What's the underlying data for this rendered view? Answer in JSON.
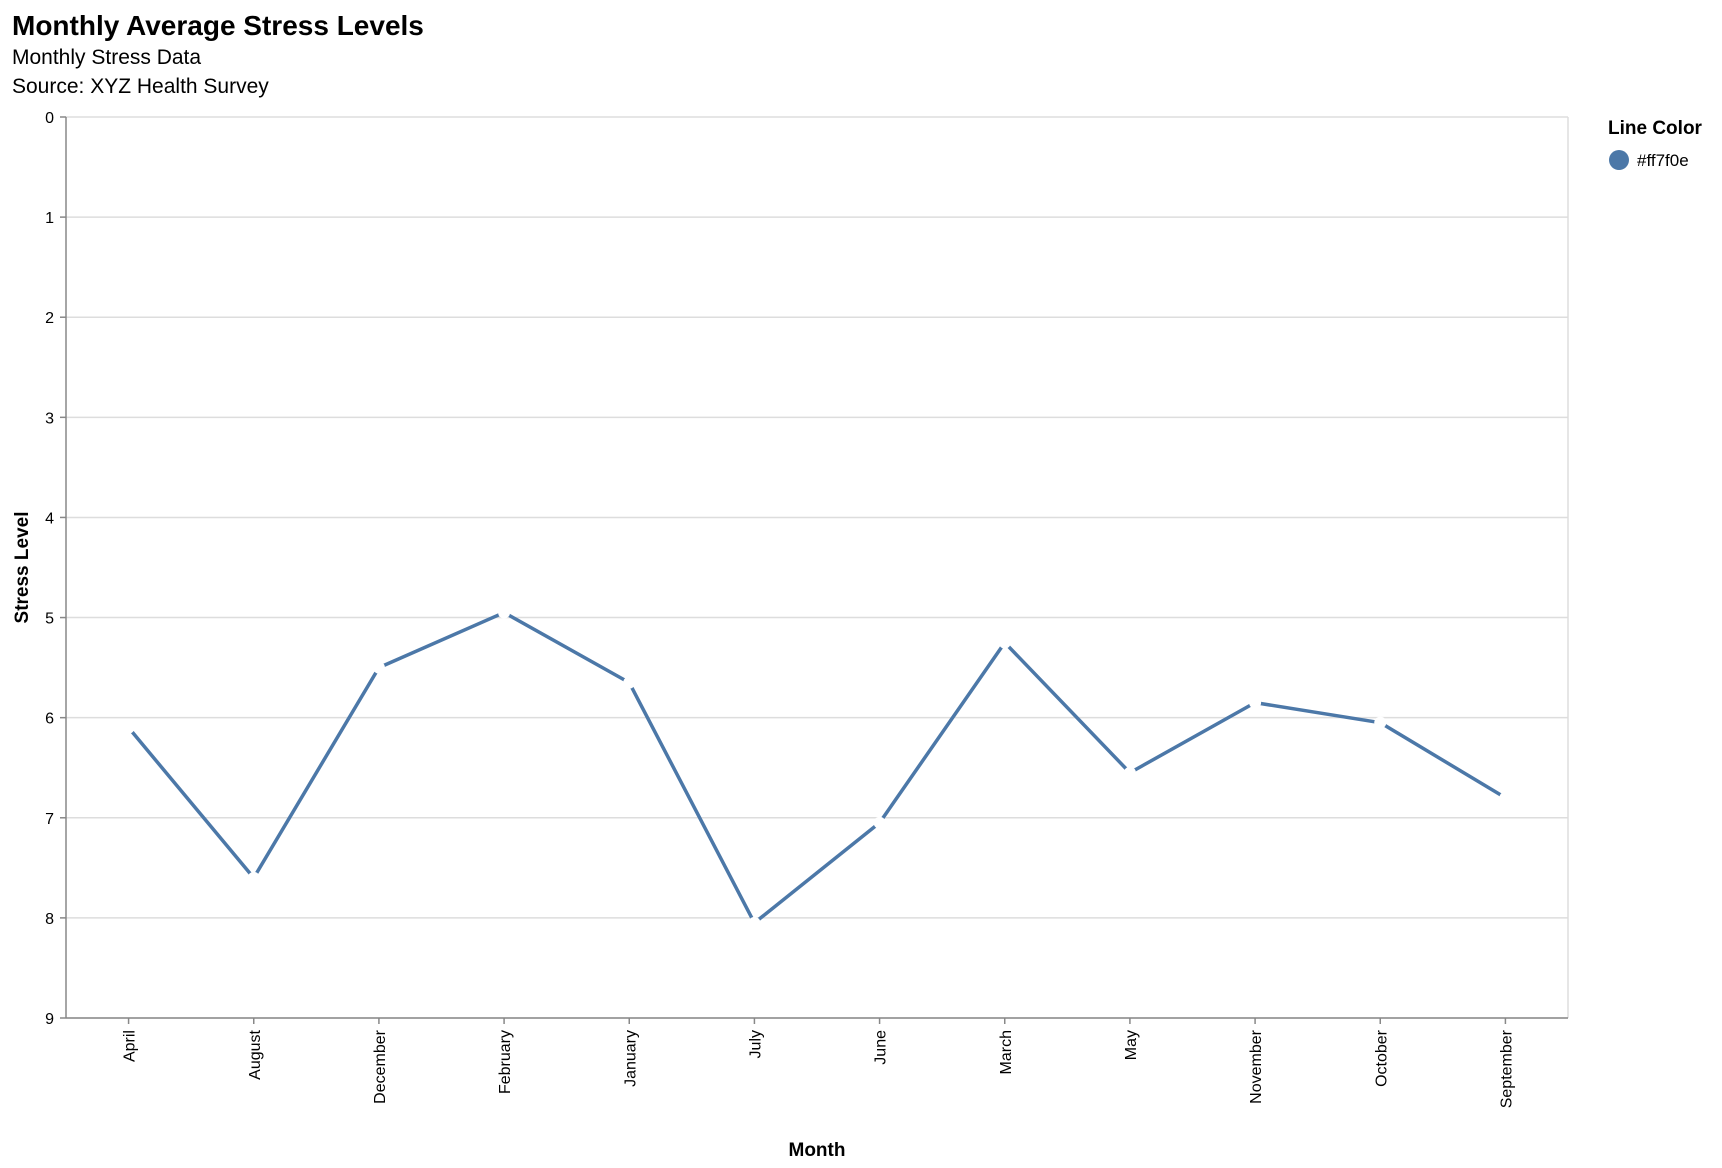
{
  "chart_data": {
    "type": "line",
    "title": "Monthly Average Stress Levels",
    "subtitle": [
      "Monthly Stress Data",
      "Source: XYZ Health Survey"
    ],
    "xlabel": "Month",
    "ylabel": "Stress Level",
    "categories": [
      "April",
      "August",
      "December",
      "February",
      "January",
      "July",
      "June",
      "March",
      "May",
      "November",
      "October",
      "September"
    ],
    "series": [
      {
        "name": "#ff7f0e",
        "color": "#4c78a8",
        "values": [
          6.1,
          7.6,
          5.5,
          4.95,
          5.65,
          8.05,
          7.05,
          5.25,
          6.55,
          5.85,
          6.05,
          6.8
        ]
      }
    ],
    "ylim": [
      0,
      9
    ],
    "y_ticks": [
      0,
      1,
      2,
      3,
      4,
      5,
      6,
      7,
      8,
      9
    ],
    "y_reversed": true,
    "grid": true,
    "legend": {
      "title": "Line Color",
      "placement": "top-right",
      "items": [
        {
          "label": "#ff7f0e",
          "color": "#4c78a8",
          "symbol": "circle-icon"
        }
      ]
    },
    "point_color": "#ffffff"
  }
}
